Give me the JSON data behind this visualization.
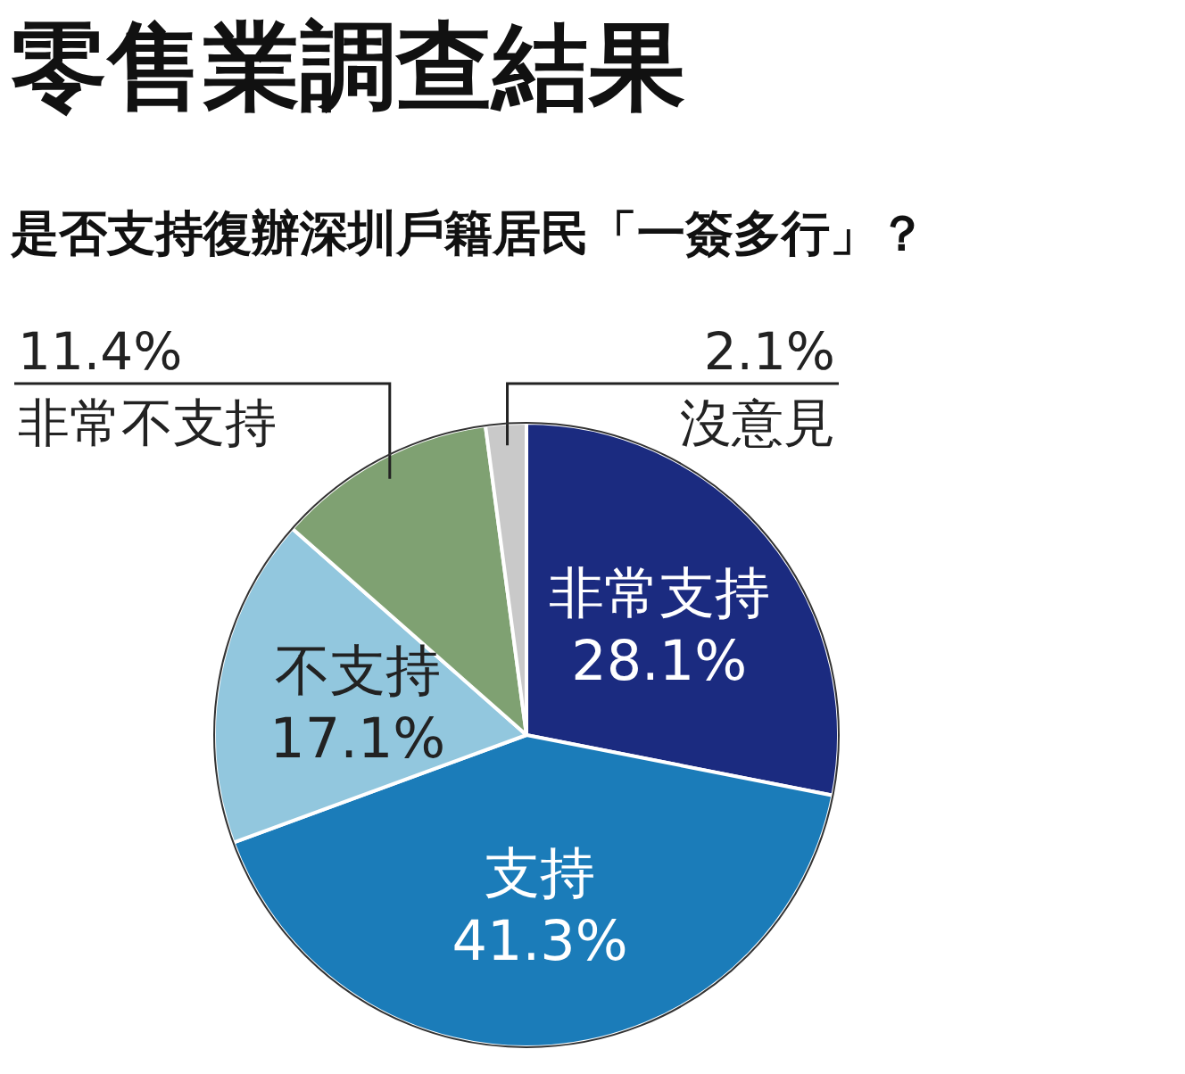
{
  "chart_data": {
    "type": "pie",
    "title": "零售業調查結果",
    "subtitle": "是否支持復辦深圳戶籍居民「一簽多行」？",
    "categories": [
      "非常支持",
      "支持",
      "不支持",
      "非常不支持",
      "沒意見"
    ],
    "values": [
      28.1,
      41.3,
      17.1,
      11.4,
      2.1
    ],
    "colors": [
      "#1b2b80",
      "#1b7cb9",
      "#92c7de",
      "#7fa172",
      "#c9c9c9"
    ],
    "value_labels": [
      "28.1%",
      "41.3%",
      "17.1%",
      "11.4%",
      "2.1%"
    ]
  }
}
